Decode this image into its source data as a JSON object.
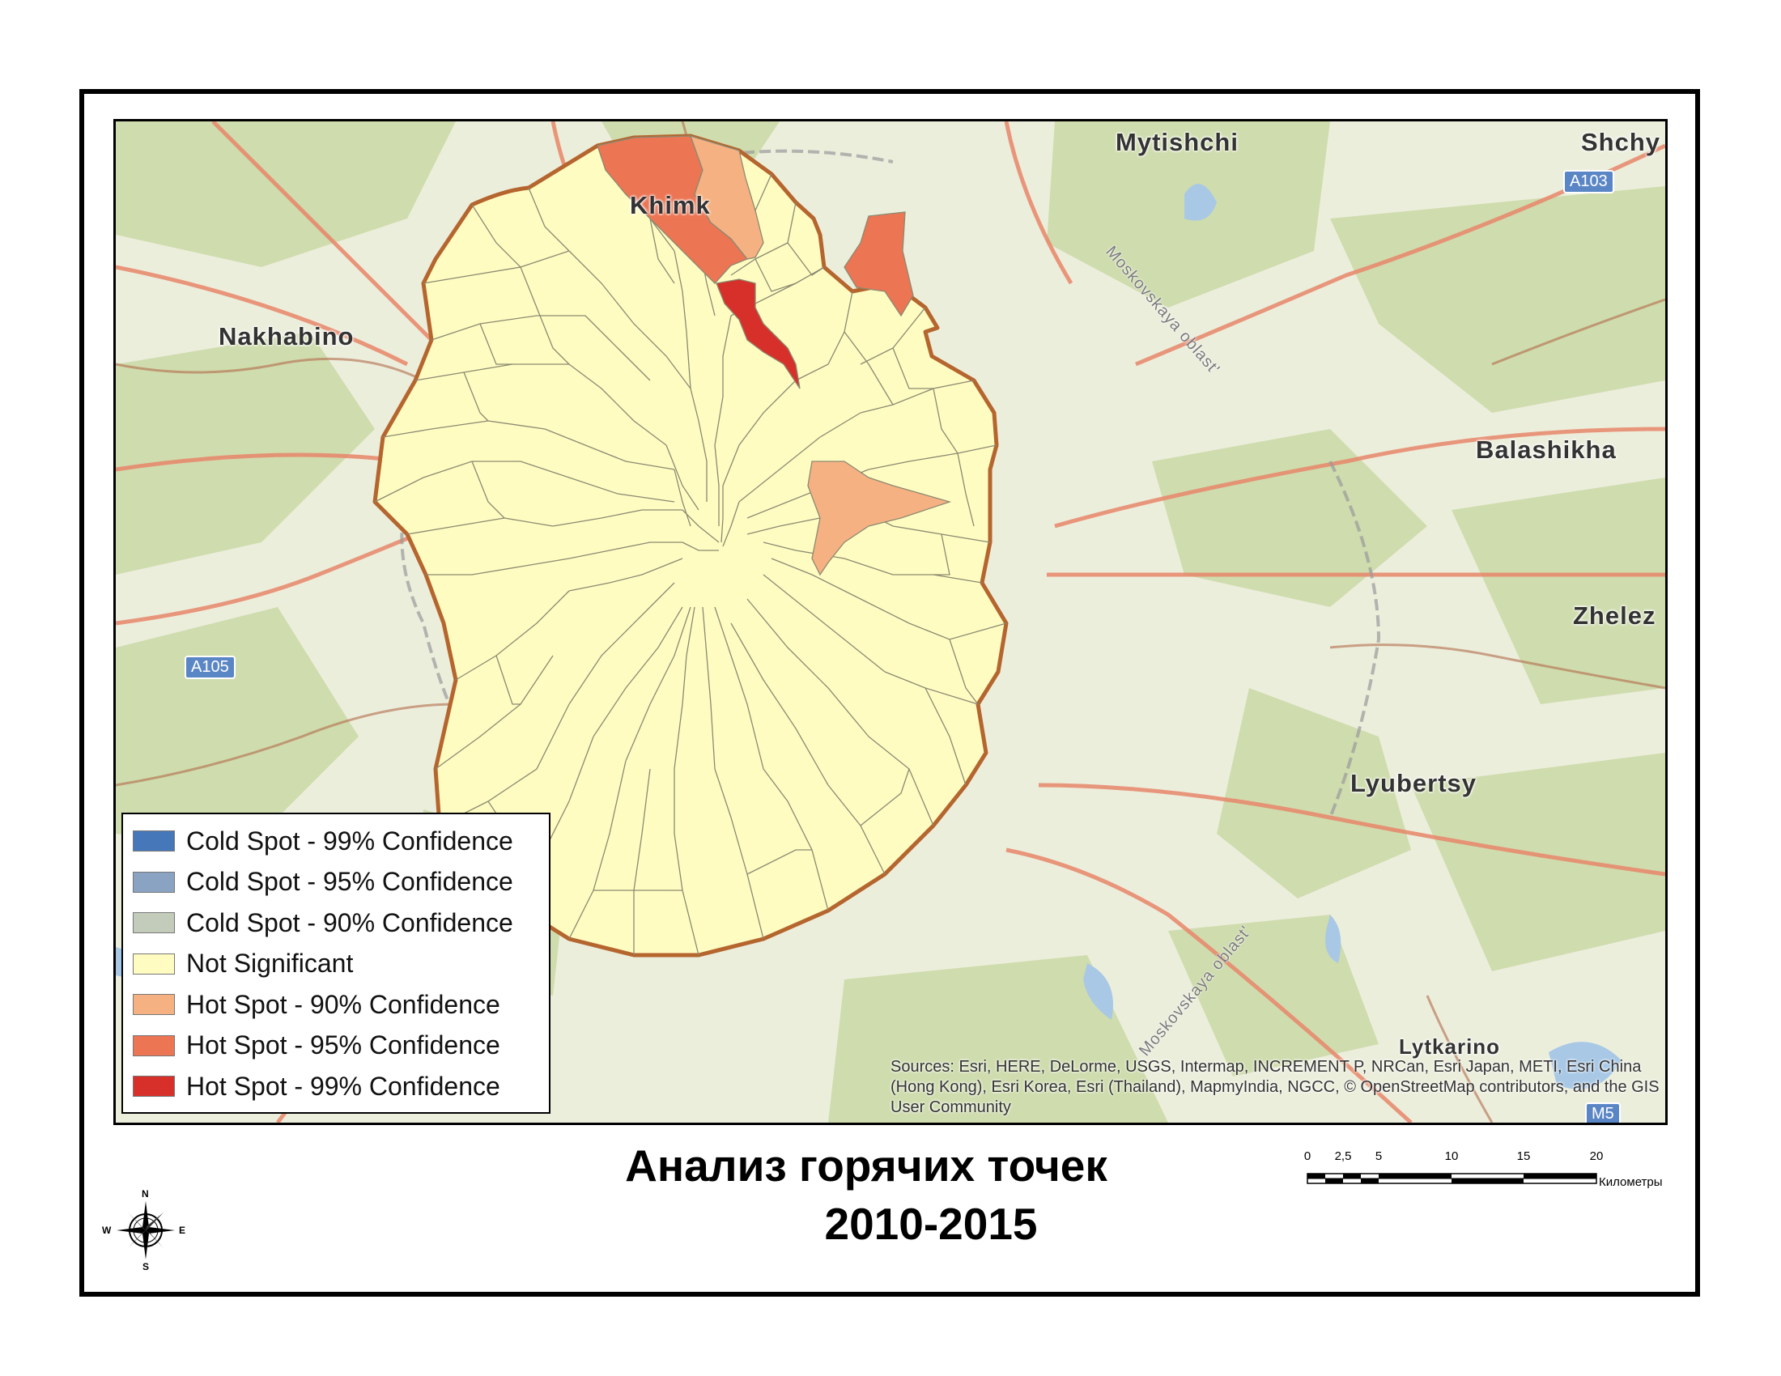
{
  "title": {
    "line1": "Анализ горячих точек",
    "line2": "2010-2015"
  },
  "map_labels": {
    "mytishchi": "Mytishchi",
    "shchy": "Shchy",
    "khimki": "Khimk",
    "nakhabino": "Nakhabino",
    "balashikha": "Balashikha",
    "zhelez": "Zhelez",
    "lyubertsy": "Lyubertsy",
    "lytkarino": "Lytkarino",
    "oblast_ne": "Moskovskaya oblast'",
    "oblast_se": "Moskovskaya oblast'"
  },
  "shields": {
    "a103": "A103",
    "a105": "A105",
    "m5": "M5"
  },
  "legend": [
    {
      "label": "Cold Spot - 99% Confidence",
      "color": "#4577b9"
    },
    {
      "label": "Cold Spot - 95% Confidence",
      "color": "#8aa3c2"
    },
    {
      "label": "Cold Spot - 90% Confidence",
      "color": "#c3cbba"
    },
    {
      "label": "Not Significant",
      "color": "#fffcc2"
    },
    {
      "label": "Hot Spot - 90% Confidence",
      "color": "#f6b182"
    },
    {
      "label": "Hot Spot - 95% Confidence",
      "color": "#ec7554"
    },
    {
      "label": "Hot Spot - 99% Confidence",
      "color": "#d7302a"
    }
  ],
  "sources_text": "Sources: Esri, HERE, DeLorme, USGS, Intermap, INCREMENT P, NRCan, Esri Japan, METI, Esri China (Hong Kong), Esri Korea, Esri (Thailand), MapmyIndia, NGCC, © OpenStreetMap contributors, and the GIS User Community",
  "scalebar": {
    "ticks": [
      "0",
      "2,5",
      "5",
      "10",
      "15",
      "20"
    ],
    "unit": "Километры"
  },
  "compass": {
    "n": "N",
    "s": "S",
    "e": "E",
    "w": "W"
  },
  "colors": {
    "frame": "#000000",
    "boundary": "#b5652e",
    "district_lines": "#8a8a70",
    "roads": "#e8866a",
    "basemap_green": "#cfdcae"
  }
}
